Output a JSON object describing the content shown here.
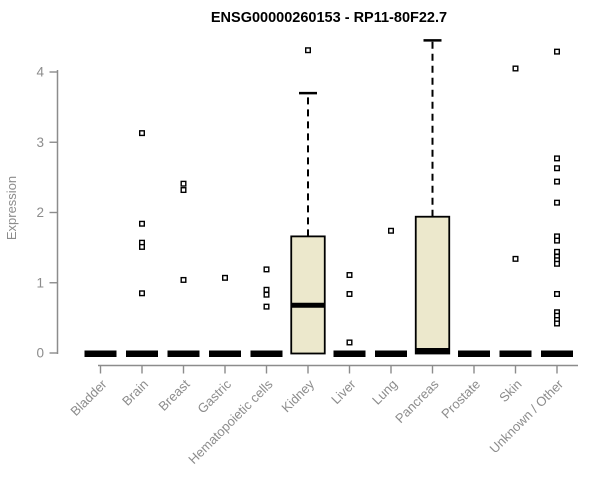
{
  "chart_data": {
    "type": "boxplot",
    "title": "ENSG00000260153 - RP11-80F22.7",
    "xlabel": "",
    "ylabel": "Expression",
    "ylim": [
      0,
      4.46
    ],
    "yticks": [
      0,
      1,
      2,
      3,
      4
    ],
    "grid": false,
    "legend": "none",
    "colors": {
      "box_fill": "#ECE8CC",
      "box_stroke": "#000000",
      "axis": "#8C8C8C",
      "tick_label": "#8C8C8C",
      "title": "#000000",
      "outlier": "#000000"
    },
    "categories": [
      "Bladder",
      "Brain",
      "Breast",
      "Gastric",
      "Hematopoietic cells",
      "Kidney",
      "Liver",
      "Lung",
      "Pancreas",
      "Prostate",
      "Skin",
      "Unknown / Other"
    ],
    "boxes": [
      {
        "category": "Bladder",
        "q1": 0,
        "median": 0,
        "q3": 0,
        "whisker_low": 0,
        "whisker_high": 0,
        "outliers": []
      },
      {
        "category": "Brain",
        "q1": 0,
        "median": 0,
        "q3": 0,
        "whisker_low": 0,
        "whisker_high": 0,
        "outliers": [
          3.13,
          1.84,
          1.57,
          1.51,
          0.85
        ]
      },
      {
        "category": "Breast",
        "q1": 0,
        "median": 0,
        "q3": 0,
        "whisker_low": 0,
        "whisker_high": 0,
        "outliers": [
          2.41,
          2.32,
          1.04
        ]
      },
      {
        "category": "Gastric",
        "q1": 0,
        "median": 0,
        "q3": 0,
        "whisker_low": 0,
        "whisker_high": 0,
        "outliers": [
          1.07
        ]
      },
      {
        "category": "Hematopoietic cells",
        "q1": 0,
        "median": 0,
        "q3": 0,
        "whisker_low": 0,
        "whisker_high": 0,
        "outliers": [
          1.19,
          0.9,
          0.83,
          0.66
        ]
      },
      {
        "category": "Kidney",
        "q1": 0,
        "median": 0.68,
        "q3": 1.66,
        "whisker_low": 0,
        "whisker_high": 3.7,
        "outliers": [
          4.31
        ]
      },
      {
        "category": "Liver",
        "q1": 0,
        "median": 0,
        "q3": 0,
        "whisker_low": 0,
        "whisker_high": 0,
        "outliers": [
          1.11,
          0.84,
          0.15
        ]
      },
      {
        "category": "Lung",
        "q1": 0,
        "median": 0,
        "q3": 0,
        "whisker_low": 0,
        "whisker_high": 0,
        "outliers": [
          1.74
        ]
      },
      {
        "category": "Pancreas",
        "q1": 0,
        "median": 0,
        "q3": 1.94,
        "whisker_low": 0,
        "whisker_high": 4.45,
        "outliers": []
      },
      {
        "category": "Prostate",
        "q1": 0,
        "median": 0,
        "q3": 0,
        "whisker_low": 0,
        "whisker_high": 0,
        "outliers": []
      },
      {
        "category": "Skin",
        "q1": 0,
        "median": 0,
        "q3": 0,
        "whisker_low": 0,
        "whisker_high": 0,
        "outliers": [
          4.05,
          1.34
        ]
      },
      {
        "category": "Unknown / Other",
        "q1": 0,
        "median": 0,
        "q3": 0,
        "whisker_low": 0,
        "whisker_high": 0,
        "outliers": [
          4.29,
          2.77,
          2.63,
          2.44,
          2.14,
          1.66,
          1.6,
          1.44,
          1.37,
          1.32,
          1.27,
          0.84,
          0.58,
          0.53,
          0.47,
          0.42
        ]
      }
    ]
  }
}
